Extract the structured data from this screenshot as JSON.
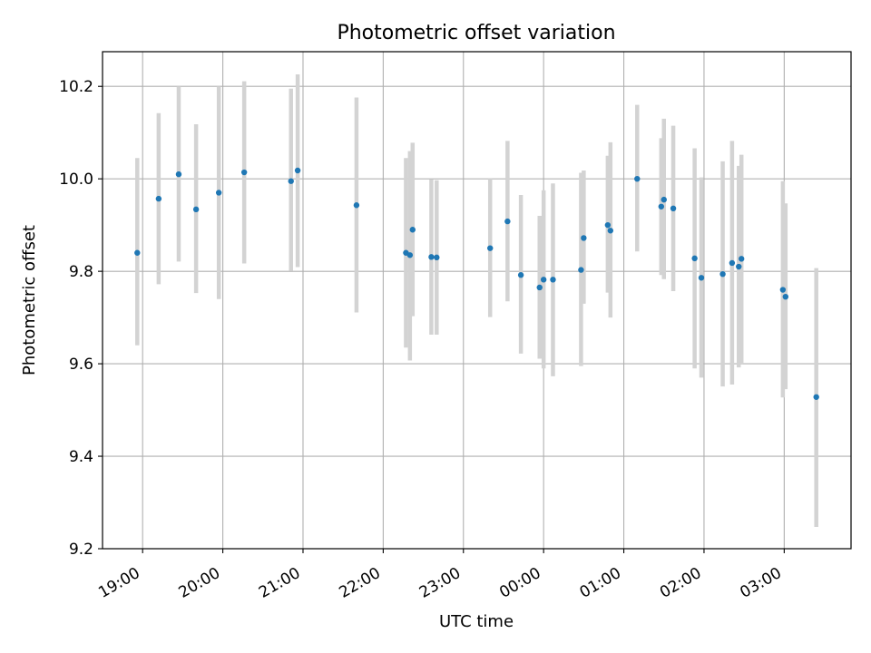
{
  "chart_data": {
    "type": "scatter",
    "title": "Photometric offset variation",
    "xlabel": "UTC time",
    "ylabel": "Photometric offset",
    "ylim": [
      9.2,
      10.275
    ],
    "xlim": [
      "18:30",
      "03:50"
    ],
    "x_ticks": [
      "19:00",
      "20:00",
      "21:00",
      "22:00",
      "23:00",
      "00:00",
      "01:00",
      "02:00",
      "03:00"
    ],
    "y_ticks": [
      "9.2",
      "9.4",
      "9.6",
      "9.8",
      "10.0",
      "10.2"
    ],
    "grid": true,
    "colors": {
      "marker": "#1f77b4",
      "errorbar": "#d3d3d3",
      "grid": "#b0b0b0"
    },
    "points": [
      {
        "t": "18:56",
        "y": 9.84,
        "low": 9.64,
        "high": 10.045
      },
      {
        "t": "19:12",
        "y": 9.957,
        "low": 9.772,
        "high": 10.142
      },
      {
        "t": "19:27",
        "y": 10.01,
        "low": 9.821,
        "high": 10.2
      },
      {
        "t": "19:40",
        "y": 9.934,
        "low": 9.753,
        "high": 10.118
      },
      {
        "t": "19:57",
        "y": 9.97,
        "low": 9.74,
        "high": 10.2
      },
      {
        "t": "20:16",
        "y": 10.014,
        "low": 9.817,
        "high": 10.211
      },
      {
        "t": "20:51",
        "y": 9.995,
        "low": 9.801,
        "high": 10.195
      },
      {
        "t": "20:56",
        "y": 10.018,
        "low": 9.809,
        "high": 10.226
      },
      {
        "t": "21:40",
        "y": 9.943,
        "low": 9.711,
        "high": 10.176
      },
      {
        "t": "22:17",
        "y": 9.84,
        "low": 9.635,
        "high": 10.045
      },
      {
        "t": "22:20",
        "y": 9.835,
        "low": 9.607,
        "high": 10.06
      },
      {
        "t": "22:22",
        "y": 9.89,
        "low": 9.703,
        "high": 10.078
      },
      {
        "t": "22:36",
        "y": 9.831,
        "low": 9.663,
        "high": 9.999
      },
      {
        "t": "22:40",
        "y": 9.83,
        "low": 9.663,
        "high": 9.997
      },
      {
        "t": "23:20",
        "y": 9.85,
        "low": 9.701,
        "high": 10.0
      },
      {
        "t": "23:33",
        "y": 9.908,
        "low": 9.735,
        "high": 10.082
      },
      {
        "t": "23:43",
        "y": 9.792,
        "low": 9.622,
        "high": 9.965
      },
      {
        "t": "23:57",
        "y": 9.765,
        "low": 9.611,
        "high": 9.92
      },
      {
        "t": "00:00",
        "y": 9.782,
        "low": 9.59,
        "high": 9.975
      },
      {
        "t": "00:07",
        "y": 9.782,
        "low": 9.573,
        "high": 9.99
      },
      {
        "t": "00:28",
        "y": 9.803,
        "low": 9.595,
        "high": 10.013
      },
      {
        "t": "00:30",
        "y": 9.872,
        "low": 9.73,
        "high": 10.018
      },
      {
        "t": "00:48",
        "y": 9.9,
        "low": 9.754,
        "high": 10.05
      },
      {
        "t": "00:50",
        "y": 9.888,
        "low": 9.7,
        "high": 10.079
      },
      {
        "t": "01:10",
        "y": 10.0,
        "low": 9.843,
        "high": 10.16
      },
      {
        "t": "01:28",
        "y": 9.94,
        "low": 9.792,
        "high": 10.088
      },
      {
        "t": "01:30",
        "y": 9.955,
        "low": 9.783,
        "high": 10.13
      },
      {
        "t": "01:37",
        "y": 9.936,
        "low": 9.757,
        "high": 10.115
      },
      {
        "t": "01:53",
        "y": 9.828,
        "low": 9.59,
        "high": 10.066
      },
      {
        "t": "01:58",
        "y": 9.786,
        "low": 9.57,
        "high": 10.003
      },
      {
        "t": "02:14",
        "y": 9.794,
        "low": 9.551,
        "high": 10.038
      },
      {
        "t": "02:21",
        "y": 9.818,
        "low": 9.555,
        "high": 10.082
      },
      {
        "t": "02:26",
        "y": 9.81,
        "low": 9.592,
        "high": 10.028
      },
      {
        "t": "02:28",
        "y": 9.827,
        "low": 9.6,
        "high": 10.052
      },
      {
        "t": "02:59",
        "y": 9.76,
        "low": 9.527,
        "high": 9.995
      },
      {
        "t": "03:01",
        "y": 9.745,
        "low": 9.545,
        "high": 9.947
      },
      {
        "t": "03:24",
        "y": 9.528,
        "low": 9.247,
        "high": 9.807
      }
    ]
  }
}
